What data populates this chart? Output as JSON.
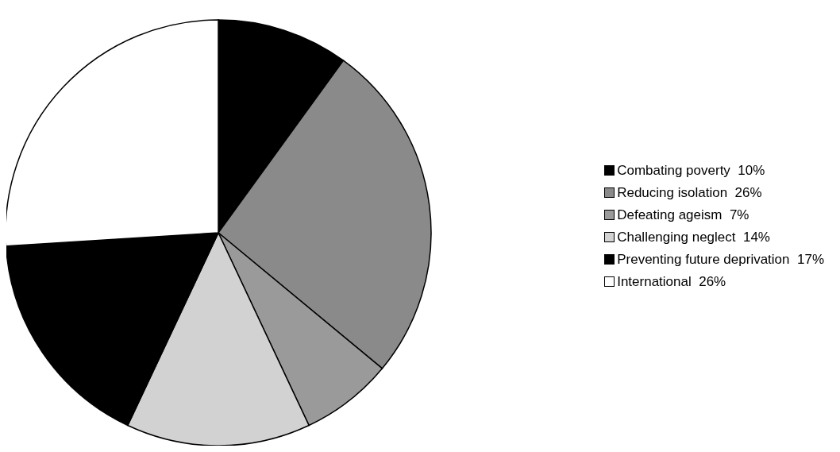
{
  "chart_data": {
    "type": "pie",
    "categories": [
      "Combating poverty",
      "Reducing isolation",
      "Defeating ageism",
      "Challenging neglect",
      "Preventing future deprivation",
      "International"
    ],
    "values": [
      10,
      26,
      7,
      14,
      17,
      26
    ],
    "value_labels": [
      "10%",
      "26%",
      "7%",
      "14%",
      "17%",
      "26%"
    ],
    "colors": [
      "#000000",
      "#8a8a8a",
      "#9a9a9a",
      "#d2d2d2",
      "#000000",
      "#ffffff"
    ],
    "legend": "right"
  }
}
